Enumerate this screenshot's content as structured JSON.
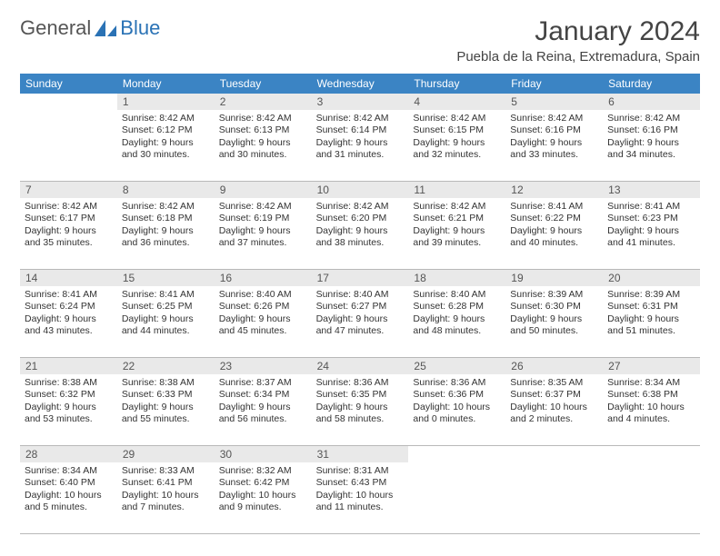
{
  "brand": {
    "left": "General",
    "right": "Blue"
  },
  "title": "January 2024",
  "location": "Puebla de la Reina, Extremadura, Spain",
  "colors": {
    "header_bg": "#3b84c4",
    "daynum_bg": "#e9e9e9",
    "rule": "#b8b8b8",
    "text": "#333333",
    "brand_blue": "#2a72b5"
  },
  "weekdays": [
    "Sunday",
    "Monday",
    "Tuesday",
    "Wednesday",
    "Thursday",
    "Friday",
    "Saturday"
  ],
  "weeks": [
    {
      "nums": [
        "",
        "1",
        "2",
        "3",
        "4",
        "5",
        "6"
      ],
      "cells": [
        "",
        "Sunrise: 8:42 AM\nSunset: 6:12 PM\nDaylight: 9 hours and 30 minutes.",
        "Sunrise: 8:42 AM\nSunset: 6:13 PM\nDaylight: 9 hours and 30 minutes.",
        "Sunrise: 8:42 AM\nSunset: 6:14 PM\nDaylight: 9 hours and 31 minutes.",
        "Sunrise: 8:42 AM\nSunset: 6:15 PM\nDaylight: 9 hours and 32 minutes.",
        "Sunrise: 8:42 AM\nSunset: 6:16 PM\nDaylight: 9 hours and 33 minutes.",
        "Sunrise: 8:42 AM\nSunset: 6:16 PM\nDaylight: 9 hours and 34 minutes."
      ]
    },
    {
      "nums": [
        "7",
        "8",
        "9",
        "10",
        "11",
        "12",
        "13"
      ],
      "cells": [
        "Sunrise: 8:42 AM\nSunset: 6:17 PM\nDaylight: 9 hours and 35 minutes.",
        "Sunrise: 8:42 AM\nSunset: 6:18 PM\nDaylight: 9 hours and 36 minutes.",
        "Sunrise: 8:42 AM\nSunset: 6:19 PM\nDaylight: 9 hours and 37 minutes.",
        "Sunrise: 8:42 AM\nSunset: 6:20 PM\nDaylight: 9 hours and 38 minutes.",
        "Sunrise: 8:42 AM\nSunset: 6:21 PM\nDaylight: 9 hours and 39 minutes.",
        "Sunrise: 8:41 AM\nSunset: 6:22 PM\nDaylight: 9 hours and 40 minutes.",
        "Sunrise: 8:41 AM\nSunset: 6:23 PM\nDaylight: 9 hours and 41 minutes."
      ]
    },
    {
      "nums": [
        "14",
        "15",
        "16",
        "17",
        "18",
        "19",
        "20"
      ],
      "cells": [
        "Sunrise: 8:41 AM\nSunset: 6:24 PM\nDaylight: 9 hours and 43 minutes.",
        "Sunrise: 8:41 AM\nSunset: 6:25 PM\nDaylight: 9 hours and 44 minutes.",
        "Sunrise: 8:40 AM\nSunset: 6:26 PM\nDaylight: 9 hours and 45 minutes.",
        "Sunrise: 8:40 AM\nSunset: 6:27 PM\nDaylight: 9 hours and 47 minutes.",
        "Sunrise: 8:40 AM\nSunset: 6:28 PM\nDaylight: 9 hours and 48 minutes.",
        "Sunrise: 8:39 AM\nSunset: 6:30 PM\nDaylight: 9 hours and 50 minutes.",
        "Sunrise: 8:39 AM\nSunset: 6:31 PM\nDaylight: 9 hours and 51 minutes."
      ]
    },
    {
      "nums": [
        "21",
        "22",
        "23",
        "24",
        "25",
        "26",
        "27"
      ],
      "cells": [
        "Sunrise: 8:38 AM\nSunset: 6:32 PM\nDaylight: 9 hours and 53 minutes.",
        "Sunrise: 8:38 AM\nSunset: 6:33 PM\nDaylight: 9 hours and 55 minutes.",
        "Sunrise: 8:37 AM\nSunset: 6:34 PM\nDaylight: 9 hours and 56 minutes.",
        "Sunrise: 8:36 AM\nSunset: 6:35 PM\nDaylight: 9 hours and 58 minutes.",
        "Sunrise: 8:36 AM\nSunset: 6:36 PM\nDaylight: 10 hours and 0 minutes.",
        "Sunrise: 8:35 AM\nSunset: 6:37 PM\nDaylight: 10 hours and 2 minutes.",
        "Sunrise: 8:34 AM\nSunset: 6:38 PM\nDaylight: 10 hours and 4 minutes."
      ]
    },
    {
      "nums": [
        "28",
        "29",
        "30",
        "31",
        "",
        "",
        ""
      ],
      "cells": [
        "Sunrise: 8:34 AM\nSunset: 6:40 PM\nDaylight: 10 hours and 5 minutes.",
        "Sunrise: 8:33 AM\nSunset: 6:41 PM\nDaylight: 10 hours and 7 minutes.",
        "Sunrise: 8:32 AM\nSunset: 6:42 PM\nDaylight: 10 hours and 9 minutes.",
        "Sunrise: 8:31 AM\nSunset: 6:43 PM\nDaylight: 10 hours and 11 minutes.",
        "",
        "",
        ""
      ]
    }
  ]
}
